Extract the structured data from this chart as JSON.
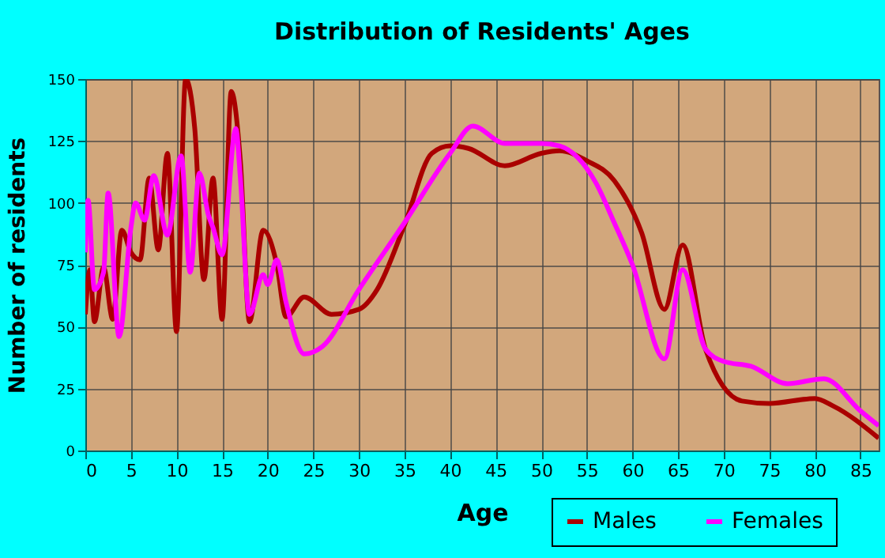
{
  "chart_data": {
    "type": "line",
    "title": "Distribution of Residents' Ages",
    "xlabel": "Age",
    "ylabel": "Number of residents",
    "xlim": [
      0,
      87
    ],
    "xticks": [
      0,
      5,
      10,
      15,
      20,
      25,
      30,
      35,
      40,
      45,
      50,
      55,
      60,
      65,
      70,
      75,
      80,
      85
    ],
    "ylim": [
      0,
      150
    ],
    "yticks": [
      0,
      25,
      50,
      75,
      100,
      125,
      150
    ],
    "grid": true,
    "legend": "bottom right",
    "marker": "none",
    "line_style": "solid",
    "series": [
      {
        "name": "Males",
        "color": "#aa0000",
        "x": [
          0,
          0.5,
          1,
          2,
          3,
          4,
          5,
          6,
          7,
          8,
          9,
          10,
          11,
          12,
          13,
          14,
          15,
          16,
          17,
          18,
          19.5,
          21,
          22,
          24,
          27,
          30,
          32,
          35,
          38,
          40,
          42,
          46,
          50,
          52,
          55,
          58,
          61,
          63.5,
          65.5,
          68,
          72,
          75,
          80,
          82,
          87
        ],
        "values": [
          55,
          73,
          52,
          74,
          53,
          89,
          80,
          77,
          110,
          81,
          120,
          48,
          150,
          130,
          69,
          110,
          53,
          145,
          117,
          52,
          89,
          75,
          54,
          62,
          55,
          57,
          65,
          91,
          120,
          123,
          122,
          115,
          120,
          121,
          117,
          109,
          88,
          57,
          83,
          41,
          20,
          19,
          21,
          18,
          5
        ]
      },
      {
        "name": "Females",
        "color": "#ff00ff",
        "x": [
          0,
          0.3,
          1,
          2,
          2.5,
          3.7,
          5,
          5.5,
          6.5,
          7.5,
          9,
          10.5,
          11.5,
          12.5,
          13.5,
          14,
          15,
          16.5,
          17,
          18,
          19.5,
          20,
          21,
          22,
          24,
          26,
          30,
          35,
          40,
          42.5,
          46,
          50,
          52,
          56,
          58,
          60,
          63.5,
          65.5,
          68,
          70,
          73,
          77,
          81,
          85,
          87
        ],
        "values": [
          80,
          101,
          65,
          72,
          104,
          46,
          90,
          100,
          93,
          111,
          87,
          119,
          72,
          112,
          95,
          90,
          79,
          130,
          110,
          55,
          71,
          67,
          77,
          60,
          39,
          42,
          65,
          92,
          120,
          131,
          124,
          124,
          123,
          108,
          92,
          75,
          37,
          73,
          41,
          36,
          34,
          27,
          29,
          16,
          10
        ]
      }
    ]
  }
}
